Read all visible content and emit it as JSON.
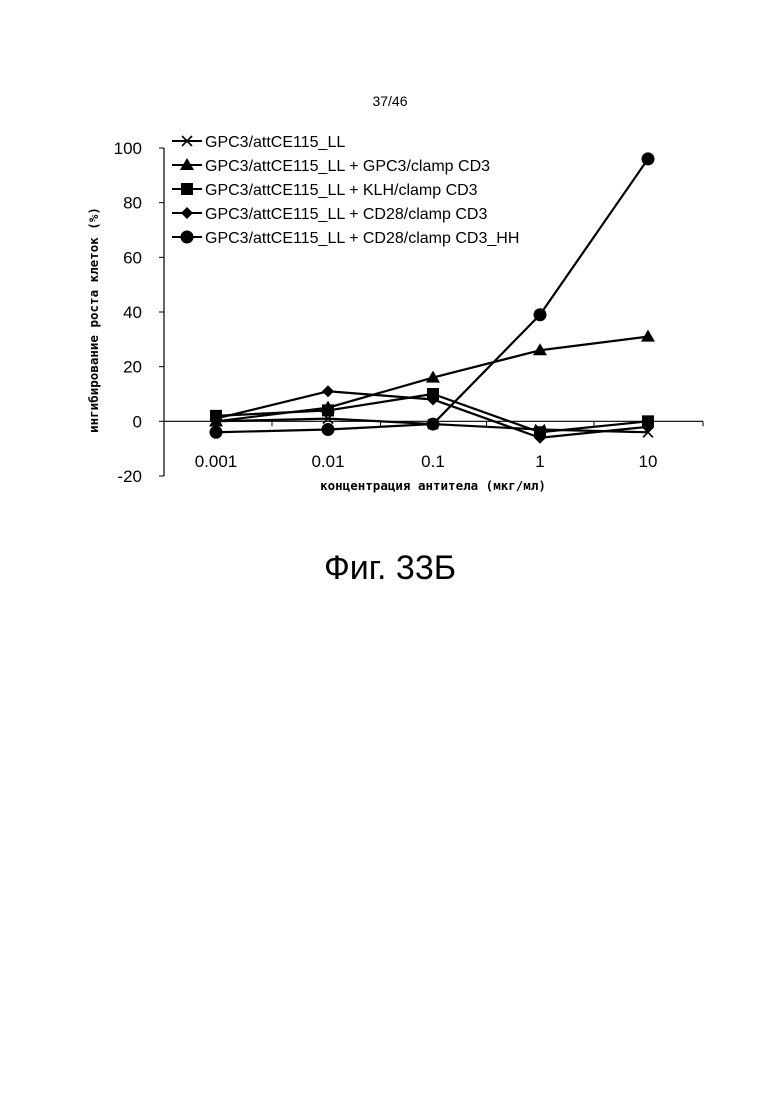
{
  "page_number": "37/46",
  "figure_caption": "Фиг. 33Б",
  "chart_data": {
    "type": "line",
    "title": "",
    "xlabel": "концентрация антитела (мкг/мл)",
    "ylabel": "ингибирование роста клеток (%)",
    "x_scale": "log",
    "categories": [
      "0.001",
      "0.01",
      "0.1",
      "1",
      "10"
    ],
    "x": [
      0.001,
      0.01,
      0.1,
      1,
      10
    ],
    "ylim": [
      -20,
      100
    ],
    "yticks": [
      "-20",
      "0",
      "20",
      "40",
      "60",
      "80",
      "100"
    ],
    "grid": false,
    "legend_position": "top-left",
    "series": [
      {
        "name": "GPC3/attCE115_LL",
        "marker": "x",
        "values": [
          0,
          1,
          -1,
          -3,
          -4
        ]
      },
      {
        "name": "GPC3/attCE115_LL + GPC3/clamp CD3",
        "marker": "triangle",
        "values": [
          0,
          5,
          16,
          26,
          31
        ]
      },
      {
        "name": "GPC3/attCE115_LL + KLH/clamp CD3",
        "marker": "square",
        "values": [
          2,
          4,
          10,
          -4,
          0
        ]
      },
      {
        "name": "GPC3/attCE115_LL + CD28/clamp CD3",
        "marker": "diamond",
        "values": [
          1,
          11,
          8,
          -6,
          -2
        ]
      },
      {
        "name": "GPC3/attCE115_LL + CD28/clamp CD3_HH",
        "marker": "circle",
        "values": [
          -4,
          -3,
          -1,
          39,
          96
        ]
      }
    ]
  }
}
